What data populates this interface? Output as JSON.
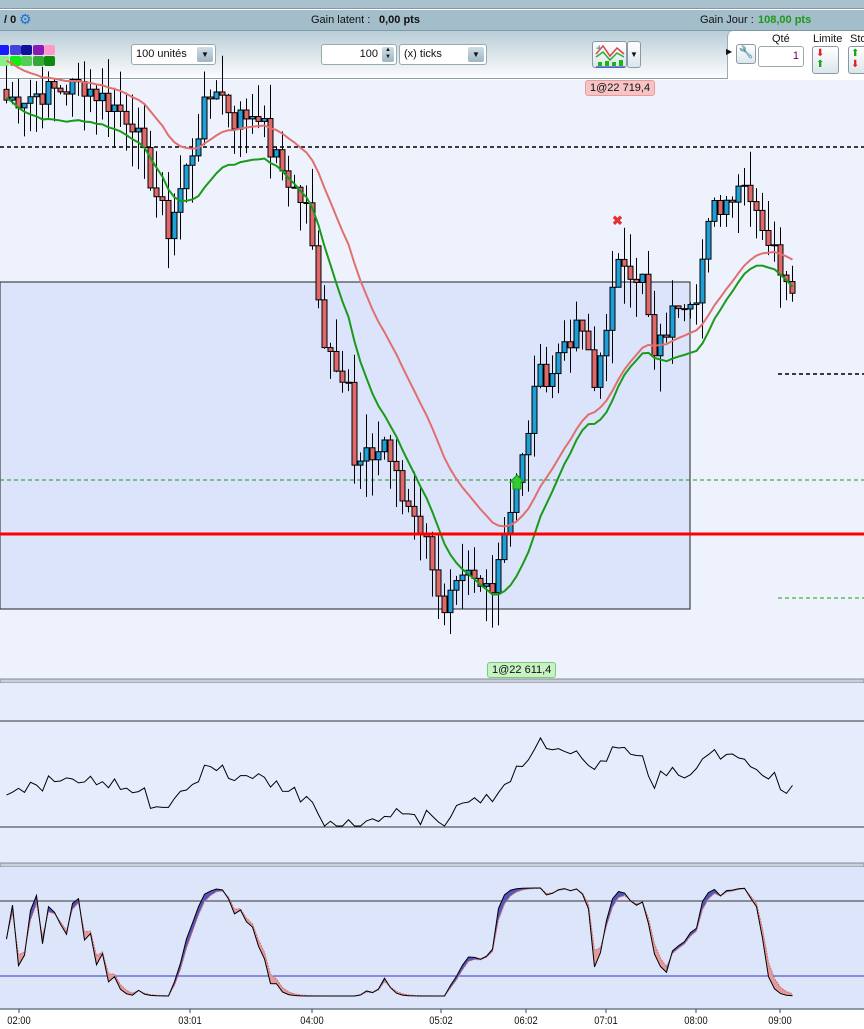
{
  "infobar": {
    "left_text": "/ 0",
    "gain_latent_label": "Gain latent :",
    "gain_latent_value": "0,00 pts",
    "gain_jour_label": "Gain Jour :",
    "gain_jour_value": "108,00 pts",
    "gain_jour_color": "#1a9a1a"
  },
  "toolbar": {
    "swatches_top": [
      "#1a1aff",
      "#4444dd",
      "#111199",
      "#8a1ab8",
      "#ff99cc"
    ],
    "swatches_bottom": [
      "#88ee88",
      "#11ee11",
      "#55cc55",
      "#33aa33",
      "#118811"
    ],
    "quantity_select": "100 unités",
    "ticks_value": "100",
    "ticks_select": "(x) ticks",
    "qty_label": "Qté",
    "qty_value": "1",
    "limit_label": "Limite",
    "stop_label": "Sto"
  },
  "chart": {
    "trade_tags": [
      {
        "text": "1@22 719,4",
        "side": "sell"
      },
      {
        "text": "1@22 611,4",
        "side": "buy"
      }
    ],
    "colors": {
      "up": "#1e9fd8",
      "down": "#e06868",
      "ma_long": "#e07070",
      "ma_short": "#1a9a1a",
      "level": "#ff0000"
    },
    "close_keypoints": [
      [
        0,
        22717.2
      ],
      [
        13,
        22720.0
      ],
      [
        21,
        22713.5
      ],
      [
        23,
        22706.0
      ],
      [
        27,
        22693.0
      ],
      [
        30,
        22704.2
      ],
      [
        33,
        22715.3
      ],
      [
        35,
        22720.0
      ],
      [
        38,
        22713.5
      ],
      [
        42,
        22715.3
      ],
      [
        44,
        22707.9
      ],
      [
        47,
        22702.3
      ],
      [
        50,
        22696.8
      ],
      [
        52,
        22681.9
      ],
      [
        53,
        22672.6
      ],
      [
        57,
        22665.2
      ],
      [
        58,
        22648.5
      ],
      [
        62,
        22652.2
      ],
      [
        63,
        22654.1
      ],
      [
        66,
        22643.0
      ],
      [
        68,
        22641.1
      ],
      [
        71,
        22631.8
      ],
      [
        73,
        22620.7
      ],
      [
        74,
        22624.4
      ],
      [
        77,
        22628.1
      ],
      [
        79,
        22626.2
      ],
      [
        81,
        22628.1
      ],
      [
        83,
        22637.4
      ],
      [
        85,
        22646.7
      ],
      [
        87,
        22654.1
      ],
      [
        88,
        22665.2
      ],
      [
        91,
        22667.1
      ],
      [
        93,
        22672.6
      ],
      [
        96,
        22674.5
      ],
      [
        98,
        22663.4
      ],
      [
        100,
        22676.3
      ],
      [
        102,
        22685.6
      ],
      [
        103,
        22687.5
      ],
      [
        106,
        22683.8
      ],
      [
        108,
        22668.9
      ],
      [
        110,
        22674.5
      ],
      [
        112,
        22680.1
      ],
      [
        115,
        22681.9
      ],
      [
        117,
        22693.0
      ],
      [
        118,
        22696.8
      ],
      [
        120,
        22698.6
      ],
      [
        122,
        22702.3
      ],
      [
        124,
        22700.5
      ],
      [
        127,
        22691.2
      ],
      [
        129,
        22686.5
      ],
      [
        131,
        22683.8
      ]
    ],
    "x_labels": [
      "02:00",
      "03:01",
      "04:00",
      "05:02",
      "06:02",
      "07:01",
      "08:00",
      "09:00"
    ]
  }
}
